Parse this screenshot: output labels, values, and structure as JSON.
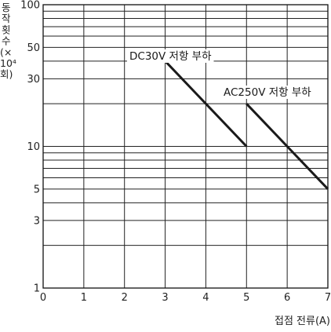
{
  "chart_data": {
    "type": "line",
    "title": "",
    "xlabel": "접점 전류(A)",
    "ylabel_lines": [
      "동",
      "작",
      "횟",
      "수",
      "(×",
      "10⁴",
      "회)"
    ],
    "xlim": [
      0,
      7
    ],
    "ylim": [
      1,
      100
    ],
    "x_scale": "linear",
    "y_scale": "log",
    "x_ticks": [
      0,
      1,
      2,
      3,
      4,
      5,
      6,
      7
    ],
    "x_tick_labels": [
      "0",
      "1",
      "2",
      "3",
      "4",
      "5",
      "6",
      "7"
    ],
    "y_ticks": [
      1,
      3,
      5,
      10,
      30,
      50,
      100
    ],
    "y_tick_labels": [
      "1",
      "3",
      "5",
      "10",
      "30",
      "50",
      "100"
    ],
    "y_minor_grid": [
      2,
      3,
      4,
      5,
      6,
      7,
      8,
      9,
      10,
      20,
      30,
      40,
      50,
      60,
      70,
      80,
      90
    ],
    "grid": true,
    "legend": "none",
    "colors": {
      "series": "#1a1a1a",
      "grid": "#222222",
      "axes": "#111111"
    },
    "series": [
      {
        "name": "DC30V 저항 부하",
        "x": [
          3,
          5
        ],
        "y": [
          40,
          10
        ]
      },
      {
        "name": "AC250V 저항 부하",
        "x": [
          5,
          7
        ],
        "y": [
          20,
          5
        ]
      }
    ]
  }
}
